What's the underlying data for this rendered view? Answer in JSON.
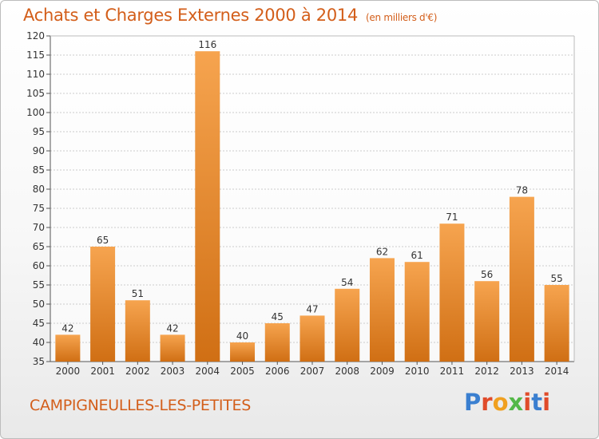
{
  "header": {
    "title": "Achats et Charges Externes 2000 à 2014",
    "subtitle": "(en milliers d'€)"
  },
  "footer": {
    "city": "CAMPIGNEULLES-LES-PETITES",
    "logo": "Proxiti",
    "logo_colors": [
      "#3a7fd0",
      "#e04b2a",
      "#f0a020",
      "#54b848",
      "#e04b2a",
      "#3a7fd0",
      "#e04b2a"
    ]
  },
  "colors": {
    "bar_light": "#f6a44f",
    "bar_dark": "#d06f14",
    "grid": "#cccccc",
    "accent": "#d35e1a"
  },
  "chart_data": {
    "type": "bar",
    "title": "Achats et Charges Externes 2000 à 2014",
    "subtitle": "(en milliers d'€)",
    "categories": [
      "2000",
      "2001",
      "2002",
      "2003",
      "2004",
      "2005",
      "2006",
      "2007",
      "2008",
      "2009",
      "2010",
      "2011",
      "2012",
      "2013",
      "2014"
    ],
    "values": [
      42,
      65,
      51,
      42,
      116,
      40,
      45,
      47,
      54,
      62,
      61,
      71,
      56,
      78,
      55
    ],
    "ylim": [
      35,
      120
    ],
    "yticks": [
      35,
      40,
      45,
      50,
      55,
      60,
      65,
      70,
      75,
      80,
      85,
      90,
      95,
      100,
      105,
      110,
      115,
      120
    ],
    "grid": true,
    "xlabel": "",
    "ylabel": ""
  }
}
